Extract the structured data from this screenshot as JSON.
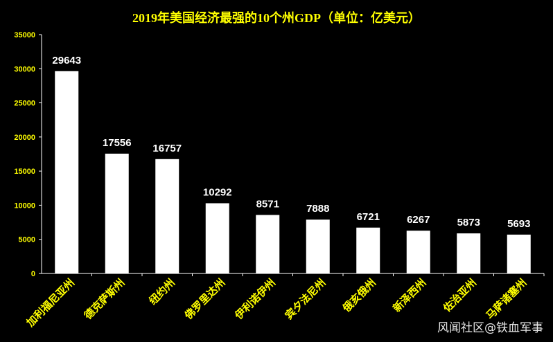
{
  "chart_data": {
    "type": "bar",
    "title": "2019年美国经济最强的10个州GDP（单位：亿美元）",
    "categories": [
      "加利福尼亚州",
      "德克萨斯州",
      "纽约州",
      "佛罗里达州",
      "伊利诺伊州",
      "宾夕法尼州",
      "俄亥俄州",
      "新泽西州",
      "佐治亚州",
      "马萨诸塞州"
    ],
    "values": [
      29643,
      17556,
      16757,
      10292,
      8571,
      7888,
      6721,
      6267,
      5873,
      5693
    ],
    "ylim": [
      0,
      35000
    ],
    "yticks": [
      0,
      5000,
      10000,
      15000,
      20000,
      25000,
      30000,
      35000
    ],
    "xlabel": "",
    "ylabel": "",
    "grid": false,
    "colors": {
      "background": "#000000",
      "bar": "#ffffff",
      "title": "#ffff00",
      "ticks": "#ffff00",
      "data_labels": "#ffffff"
    }
  },
  "watermark": "风闻社区@铁血军事"
}
